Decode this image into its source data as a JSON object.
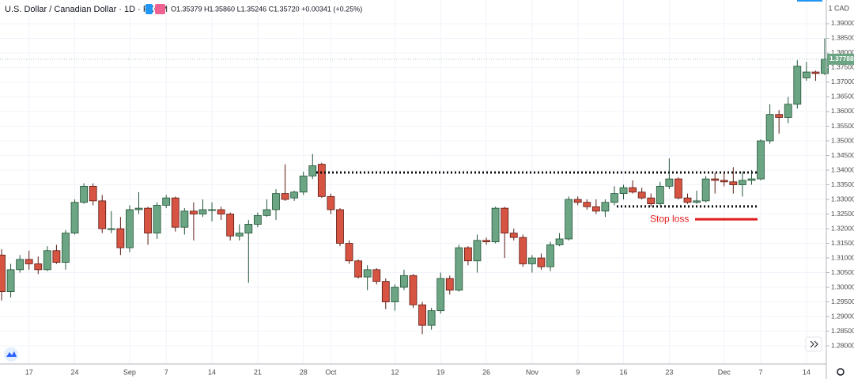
{
  "chart_data": {
    "type": "candlestick",
    "title": "U.S. Dollar / Canadian Dollar · 1D · FXCM",
    "ohlc_text": "O1.35379 H1.35860 L1.35246 C1.35720 +0.00341 (+0.25%)",
    "axis_unit": "1 CAD",
    "up_color": "#6ba583",
    "down_color": "#d75442",
    "grid": true,
    "categories": [
      null,
      null,
      null,
      "17",
      null,
      null,
      null,
      null,
      "24",
      null,
      null,
      null,
      null,
      null,
      "Sep",
      null,
      null,
      null,
      "7",
      null,
      null,
      null,
      null,
      "14",
      null,
      null,
      null,
      null,
      "21",
      null,
      null,
      null,
      null,
      "28",
      null,
      null,
      "Oct",
      null,
      null,
      null,
      null,
      null,
      null,
      "12",
      null,
      null,
      null,
      null,
      "19",
      null,
      null,
      null,
      null,
      "26",
      null,
      null,
      null,
      null,
      "Nov",
      null,
      null,
      null,
      null,
      "9",
      null,
      null,
      null,
      null,
      "16",
      null,
      null,
      null,
      null,
      "23",
      null,
      null,
      null,
      null,
      null,
      "Dec",
      null,
      null,
      null,
      "7",
      null,
      null,
      null,
      null,
      "14",
      null,
      null
    ],
    "open": [
      1.311,
      1.2985,
      1.306,
      1.3095,
      1.308,
      1.306,
      1.3125,
      1.3085,
      1.3185,
      1.329,
      1.3345,
      1.3295,
      1.32,
      1.32,
      1.3135,
      1.3265,
      1.327,
      1.3185,
      1.328,
      1.3305,
      1.3205,
      1.326,
      1.325,
      1.3265,
      1.3265,
      1.325,
      1.3175,
      1.3185,
      1.3215,
      1.3245,
      1.3265,
      1.332,
      1.3305,
      1.3325,
      1.338,
      1.342,
      1.331,
      1.3265,
      1.315,
      1.309,
      1.3035,
      1.306,
      1.302,
      1.295,
      1.3,
      1.304,
      1.294,
      1.287,
      1.292,
      1.303,
      1.299,
      1.3135,
      1.309,
      1.316,
      1.3155,
      1.327,
      1.3185,
      1.317,
      1.308,
      1.31,
      1.307,
      1.3145,
      1.3165,
      1.33,
      1.329,
      1.3275,
      1.326,
      1.329,
      1.332,
      1.334,
      1.3325,
      1.3305,
      1.3285,
      1.3345,
      1.337,
      1.3305,
      1.329,
      1.3295,
      1.337,
      1.3365,
      1.336,
      1.335,
      1.3365,
      1.337,
      1.35,
      1.359,
      1.358,
      1.3625,
      1.3715,
      1.3735,
      1.373
    ],
    "high": [
      1.313,
      1.308,
      1.311,
      1.3125,
      1.3105,
      1.314,
      1.3145,
      1.3195,
      1.33,
      1.3355,
      1.3355,
      1.3315,
      1.326,
      1.324,
      1.328,
      1.3325,
      1.3275,
      1.329,
      1.3315,
      1.331,
      1.327,
      1.329,
      1.33,
      1.329,
      1.3275,
      1.3255,
      1.3215,
      1.323,
      1.3255,
      1.33,
      1.3335,
      1.342,
      1.333,
      1.3395,
      1.3455,
      1.3425,
      1.332,
      1.327,
      1.316,
      1.3095,
      1.3075,
      1.3065,
      1.303,
      1.301,
      1.306,
      1.3045,
      1.295,
      1.293,
      1.305,
      1.304,
      1.3145,
      1.314,
      1.318,
      1.317,
      1.3275,
      1.3275,
      1.32,
      1.318,
      1.311,
      1.3115,
      1.3155,
      1.3185,
      1.331,
      1.331,
      1.33,
      1.33,
      1.33,
      1.3345,
      1.335,
      1.3365,
      1.334,
      1.332,
      1.336,
      1.344,
      1.3375,
      1.332,
      1.333,
      1.338,
      1.339,
      1.3395,
      1.341,
      1.3395,
      1.34,
      1.3505,
      1.3625,
      1.3605,
      1.365,
      1.3775,
      1.377,
      1.374,
      1.385
    ],
    "low": [
      1.2955,
      1.2965,
      1.305,
      1.306,
      1.3045,
      1.3055,
      1.308,
      1.306,
      1.318,
      1.3285,
      1.328,
      1.3185,
      1.3185,
      1.311,
      1.312,
      1.325,
      1.3145,
      1.3165,
      1.327,
      1.319,
      1.318,
      1.316,
      1.324,
      1.3225,
      1.323,
      1.316,
      1.316,
      1.3015,
      1.3205,
      1.324,
      1.323,
      1.3295,
      1.3295,
      1.3315,
      1.337,
      1.3305,
      1.325,
      1.314,
      1.308,
      1.303,
      1.299,
      1.301,
      1.2925,
      1.292,
      1.299,
      1.293,
      1.284,
      1.2855,
      1.291,
      1.2975,
      1.2985,
      1.3075,
      1.305,
      1.3145,
      1.315,
      1.31,
      1.316,
      1.307,
      1.305,
      1.306,
      1.3055,
      1.314,
      1.316,
      1.328,
      1.3265,
      1.325,
      1.324,
      1.328,
      1.33,
      1.332,
      1.33,
      1.3275,
      1.328,
      1.3335,
      1.33,
      1.3285,
      1.3285,
      1.329,
      1.332,
      1.3345,
      1.332,
      1.331,
      1.335,
      1.3365,
      1.349,
      1.3525,
      1.356,
      1.361,
      1.3705,
      1.3705,
      1.3725
    ],
    "close": [
      1.2985,
      1.306,
      1.3095,
      1.308,
      1.306,
      1.3125,
      1.3085,
      1.3185,
      1.329,
      1.3345,
      1.3295,
      1.32,
      1.32,
      1.3135,
      1.3265,
      1.327,
      1.3185,
      1.328,
      1.3305,
      1.3205,
      1.326,
      1.325,
      1.3265,
      1.3265,
      1.325,
      1.3175,
      1.3185,
      1.3215,
      1.3245,
      1.3265,
      1.332,
      1.33,
      1.3325,
      1.338,
      1.3415,
      1.331,
      1.3265,
      1.315,
      1.309,
      1.3035,
      1.306,
      1.302,
      1.295,
      1.3,
      1.304,
      1.294,
      1.287,
      1.292,
      1.303,
      1.299,
      1.3135,
      1.309,
      1.316,
      1.3155,
      1.327,
      1.3185,
      1.317,
      1.308,
      1.31,
      1.307,
      1.3145,
      1.3165,
      1.33,
      1.329,
      1.3275,
      1.326,
      1.329,
      1.332,
      1.334,
      1.3325,
      1.3305,
      1.3285,
      1.3345,
      1.337,
      1.3305,
      1.329,
      1.3295,
      1.337,
      1.3365,
      1.336,
      1.335,
      1.3365,
      1.337,
      1.35,
      1.359,
      1.358,
      1.3625,
      1.3755,
      1.3735,
      1.373,
      1.37788
    ],
    "last_price": {
      "value": 1.37788,
      "label": "1.37788"
    },
    "levels": [
      1.3392,
      1.3276
    ],
    "annotation": {
      "text": "Stop loss",
      "value": 1.3232,
      "color": "#e01b1b"
    },
    "ylim": [
      1.2738,
      1.3981
    ],
    "yticks": [
      {
        "value": 1.28,
        "label": "1.28000"
      },
      {
        "value": 1.285,
        "label": "1.28500"
      },
      {
        "value": 1.29,
        "label": "1.29000"
      },
      {
        "value": 1.295,
        "label": "1.29500"
      },
      {
        "value": 1.3,
        "label": "1.30000"
      },
      {
        "value": 1.305,
        "label": "1.30500"
      },
      {
        "value": 1.31,
        "label": "1.31000"
      },
      {
        "value": 1.315,
        "label": "1.31500"
      },
      {
        "value": 1.32,
        "label": "1.32000"
      },
      {
        "value": 1.325,
        "label": "1.32500"
      },
      {
        "value": 1.33,
        "label": "1.33000"
      },
      {
        "value": 1.335,
        "label": "1.33500"
      },
      {
        "value": 1.34,
        "label": "1.34000"
      },
      {
        "value": 1.345,
        "label": "1.34500"
      },
      {
        "value": 1.35,
        "label": "1.35000"
      },
      {
        "value": 1.355,
        "label": "1.35500"
      },
      {
        "value": 1.36,
        "label": "1.36000"
      },
      {
        "value": 1.365,
        "label": "1.36500"
      },
      {
        "value": 1.37,
        "label": "1.37000"
      },
      {
        "value": 1.375,
        "label": "1.37500"
      },
      {
        "value": 1.38,
        "label": "1.38000"
      },
      {
        "value": 1.385,
        "label": "1.38500"
      },
      {
        "value": 1.39,
        "label": "1.39000"
      }
    ]
  }
}
